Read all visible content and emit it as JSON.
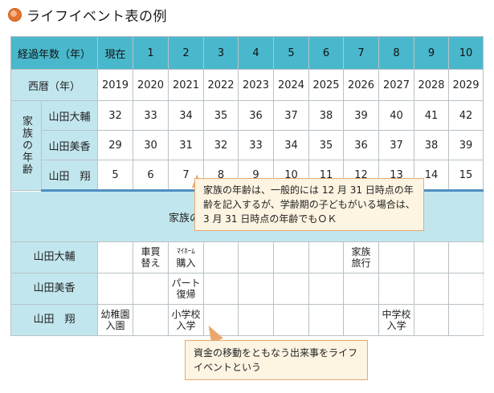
{
  "title": "ライフイベント表の例",
  "header": {
    "label": "経過年数（年）",
    "cols": [
      "現在",
      "1",
      "2",
      "3",
      "4",
      "5",
      "6",
      "7",
      "8",
      "9",
      "10"
    ]
  },
  "year_row": {
    "label": "西暦（年）",
    "cols": [
      "2019",
      "2020",
      "2021",
      "2022",
      "2023",
      "2024",
      "2025",
      "2026",
      "2027",
      "2028",
      "2029"
    ]
  },
  "ages": {
    "group_label": "家族の年齢",
    "members": [
      {
        "name": "山田大輔",
        "values": [
          "32",
          "33",
          "34",
          "35",
          "36",
          "37",
          "38",
          "39",
          "40",
          "41",
          "42"
        ]
      },
      {
        "name": "山田美香",
        "values": [
          "29",
          "30",
          "31",
          "32",
          "33",
          "34",
          "35",
          "36",
          "37",
          "38",
          "39"
        ]
      },
      {
        "name": "山田　翔",
        "values": [
          "5",
          "6",
          "7",
          "8",
          "9",
          "10",
          "11",
          "12",
          "13",
          "14",
          "15"
        ]
      }
    ]
  },
  "events_title": "家族のライフイベントと必要資金",
  "events": [
    {
      "name": "山田大輔",
      "cells": [
        "",
        "車買\n替え",
        "ﾏｲﾎｰﾑ\n購入",
        "",
        "",
        "",
        "",
        "家族\n旅行",
        "",
        "",
        ""
      ]
    },
    {
      "name": "山田美香",
      "cells": [
        "",
        "",
        "パート\n復帰",
        "",
        "",
        "",
        "",
        "",
        "",
        "",
        ""
      ]
    },
    {
      "name": "山田　翔",
      "cells": [
        "幼稚園\n入園",
        "",
        "小学校\n入学",
        "",
        "",
        "",
        "",
        "",
        "中学校\n入学",
        "",
        ""
      ]
    }
  ],
  "note_age": "家族の年齢は、一般的には 12 月 31 日時点の年齢を記入するが、学齢期の子どもがいる場合は、3 月 31 日時点の年齢でもＯＫ",
  "note_event": "資金の移動をともなう出来事をライフイベントという",
  "colors": {
    "header_bg": "#4ab8cc",
    "label_bg": "#c2e6ee",
    "callout_bg": "#fdf4e2",
    "callout_border": "#e9a86e"
  }
}
